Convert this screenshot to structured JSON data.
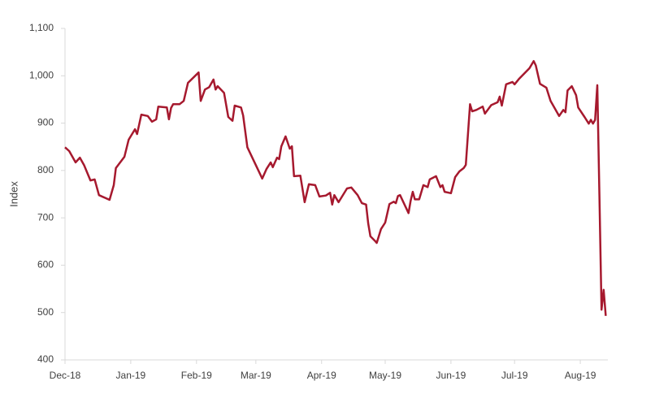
{
  "chart_data": {
    "type": "line",
    "y_label": "Index",
    "x": [
      0,
      2,
      5,
      7,
      9,
      12,
      14,
      16,
      21,
      23,
      24,
      28,
      30,
      33,
      34,
      36,
      39,
      41,
      43,
      44,
      48,
      49,
      50,
      51,
      54,
      56,
      58,
      63,
      64,
      66,
      68,
      70,
      71,
      72,
      75,
      77,
      79,
      80,
      83,
      84,
      86,
      93,
      95,
      97,
      98,
      100,
      101,
      102,
      104,
      106,
      107,
      108,
      111,
      113,
      115,
      118,
      120,
      123,
      125,
      126,
      127,
      129,
      133,
      135,
      138,
      140,
      142,
      143,
      144,
      146,
      147,
      149,
      151,
      153,
      155,
      156,
      157,
      158,
      162,
      163,
      164,
      165,
      167,
      169,
      171,
      172,
      175,
      177,
      178,
      179,
      182,
      184,
      186,
      188,
      189,
      191,
      192,
      194,
      197,
      198,
      201,
      204,
      205,
      206,
      208,
      211,
      212,
      214,
      219,
      221,
      222,
      224,
      227,
      229,
      233,
      235,
      236,
      237,
      239,
      241,
      242,
      245,
      247,
      248,
      249,
      250,
      251,
      252,
      253,
      254,
      255
    ],
    "values": [
      849,
      841,
      817,
      827,
      811,
      779,
      781,
      748,
      738,
      769,
      805,
      829,
      865,
      887,
      877,
      918,
      915,
      903,
      908,
      935,
      933,
      908,
      932,
      940,
      940,
      947,
      985,
      1007,
      947,
      971,
      976,
      992,
      971,
      978,
      964,
      913,
      905,
      937,
      933,
      916,
      849,
      783,
      803,
      817,
      807,
      827,
      824,
      851,
      872,
      846,
      851,
      788,
      789,
      733,
      771,
      769,
      745,
      747,
      753,
      728,
      748,
      733,
      762,
      764,
      748,
      731,
      728,
      688,
      661,
      652,
      647,
      676,
      690,
      729,
      734,
      731,
      746,
      748,
      710,
      736,
      755,
      739,
      739,
      769,
      765,
      781,
      788,
      765,
      769,
      755,
      752,
      786,
      798,
      805,
      812,
      940,
      925,
      928,
      935,
      920,
      938,
      944,
      956,
      937,
      982,
      987,
      982,
      993,
      1016,
      1031,
      1022,
      983,
      975,
      947,
      915,
      928,
      923,
      969,
      978,
      959,
      933,
      913,
      899,
      907,
      899,
      907,
      980,
      748,
      506,
      548,
      493
    ],
    "color": "#a6192e",
    "xlim": [
      0,
      256
    ],
    "xticks": [
      {
        "value": 0,
        "label": "Dec-18"
      },
      {
        "value": 31,
        "label": "Jan-19"
      },
      {
        "value": 62,
        "label": "Feb-19"
      },
      {
        "value": 90,
        "label": "Mar-19"
      },
      {
        "value": 121,
        "label": "Apr-19"
      },
      {
        "value": 151,
        "label": "May-19"
      },
      {
        "value": 182,
        "label": "Jun-19"
      },
      {
        "value": 212,
        "label": "Jul-19"
      },
      {
        "value": 243,
        "label": "Aug-19"
      }
    ],
    "ylim": [
      400,
      1100
    ],
    "yticks": [
      400,
      500,
      600,
      700,
      800,
      900,
      {
        "value": 1000,
        "label": "1,000"
      },
      {
        "value": 1100,
        "label": "1,100"
      }
    ]
  }
}
